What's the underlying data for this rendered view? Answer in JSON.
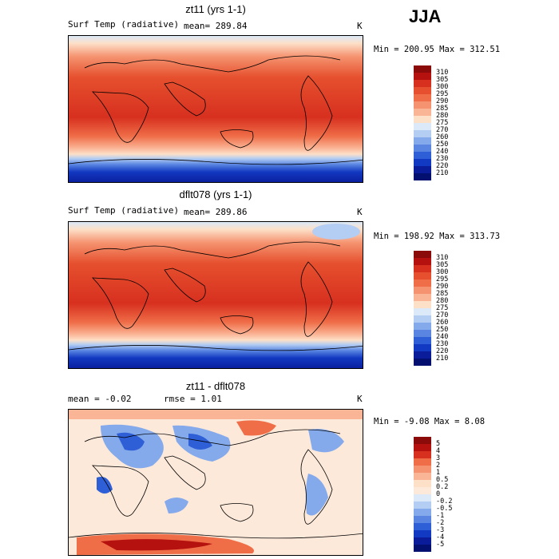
{
  "season": "JJA",
  "panels": [
    {
      "title": "zt11 (yrs 1-1)",
      "left_label": "Surf Temp (radiative)",
      "mean_label": "mean=  289.84",
      "unit": "K",
      "minmax": "Min = 200.95 Max = 312.51",
      "colorbar_labels": [
        "310",
        "305",
        "300",
        "295",
        "290",
        "285",
        "280",
        "275",
        "270",
        "260",
        "250",
        "240",
        "230",
        "220",
        "210"
      ],
      "colorbar_colors": [
        "#8b0a0a",
        "#b5120f",
        "#d7301f",
        "#e6502e",
        "#ef6e48",
        "#f59370",
        "#fab496",
        "#fde0c8",
        "#dbe9f8",
        "#b4cdf2",
        "#84aaeb",
        "#5a86e2",
        "#2f5fd6",
        "#1239c1",
        "#0a1c9a",
        "#041070"
      ]
    },
    {
      "title": "dflt078 (yrs 1-1)",
      "left_label": "Surf Temp (radiative)",
      "mean_label": "mean=  289.86",
      "unit": "K",
      "minmax": "Min = 198.92 Max = 313.73",
      "colorbar_labels": [
        "310",
        "305",
        "300",
        "295",
        "290",
        "285",
        "280",
        "275",
        "270",
        "260",
        "250",
        "240",
        "230",
        "220",
        "210"
      ],
      "colorbar_colors": [
        "#8b0a0a",
        "#b5120f",
        "#d7301f",
        "#e6502e",
        "#ef6e48",
        "#f59370",
        "#fab496",
        "#fde0c8",
        "#dbe9f8",
        "#b4cdf2",
        "#84aaeb",
        "#5a86e2",
        "#2f5fd6",
        "#1239c1",
        "#0a1c9a",
        "#041070"
      ]
    },
    {
      "title": "zt11 - dflt078",
      "left_label": "mean =   -0.02",
      "mean_label": "rmse =    1.01",
      "unit": "K",
      "minmax": "Min =  -9.08 Max =   8.08",
      "colorbar_labels": [
        "5",
        "4",
        "3",
        "2",
        "1",
        "0.5",
        "0.2",
        "0",
        "-0.2",
        "-0.5",
        "-1",
        "-2",
        "-3",
        "-4",
        "-5"
      ],
      "colorbar_colors": [
        "#8b0a0a",
        "#b5120f",
        "#d7301f",
        "#ef6e48",
        "#f59370",
        "#fab496",
        "#fde0c8",
        "#fde9da",
        "#dbe9f8",
        "#b4cdf2",
        "#84aaeb",
        "#5a86e2",
        "#2f5fd6",
        "#1239c1",
        "#0a1c9a",
        "#041070"
      ]
    }
  ]
}
